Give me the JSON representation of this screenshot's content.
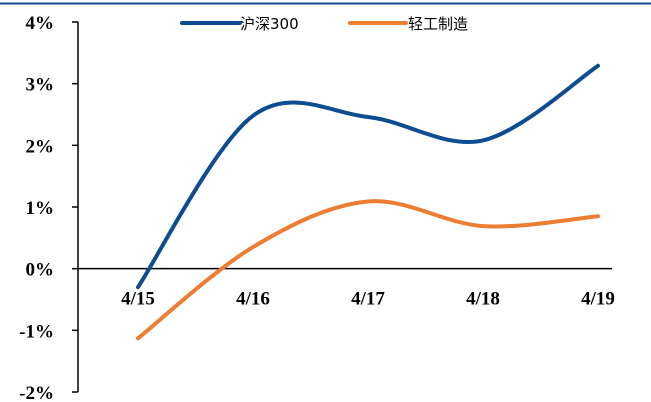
{
  "chart_data": {
    "type": "line",
    "categories": [
      "4/15",
      "4/16",
      "4/17",
      "4/18",
      "4/19"
    ],
    "series": [
      {
        "name": "沪深300",
        "color": "#0e4c92",
        "values": [
          -0.3,
          2.48,
          2.46,
          2.08,
          3.29
        ]
      },
      {
        "name": "轻工制造",
        "color": "#ed7d31",
        "values": [
          -1.13,
          0.35,
          1.09,
          0.69,
          0.85
        ]
      }
    ],
    "ylim": [
      -2,
      4
    ],
    "yticks": [
      "4%",
      "3%",
      "2%",
      "1%",
      "0%",
      "-1%",
      "-2%"
    ],
    "legend_position": "top-center",
    "grid": false,
    "top_rule_color": "#0e4c92"
  }
}
